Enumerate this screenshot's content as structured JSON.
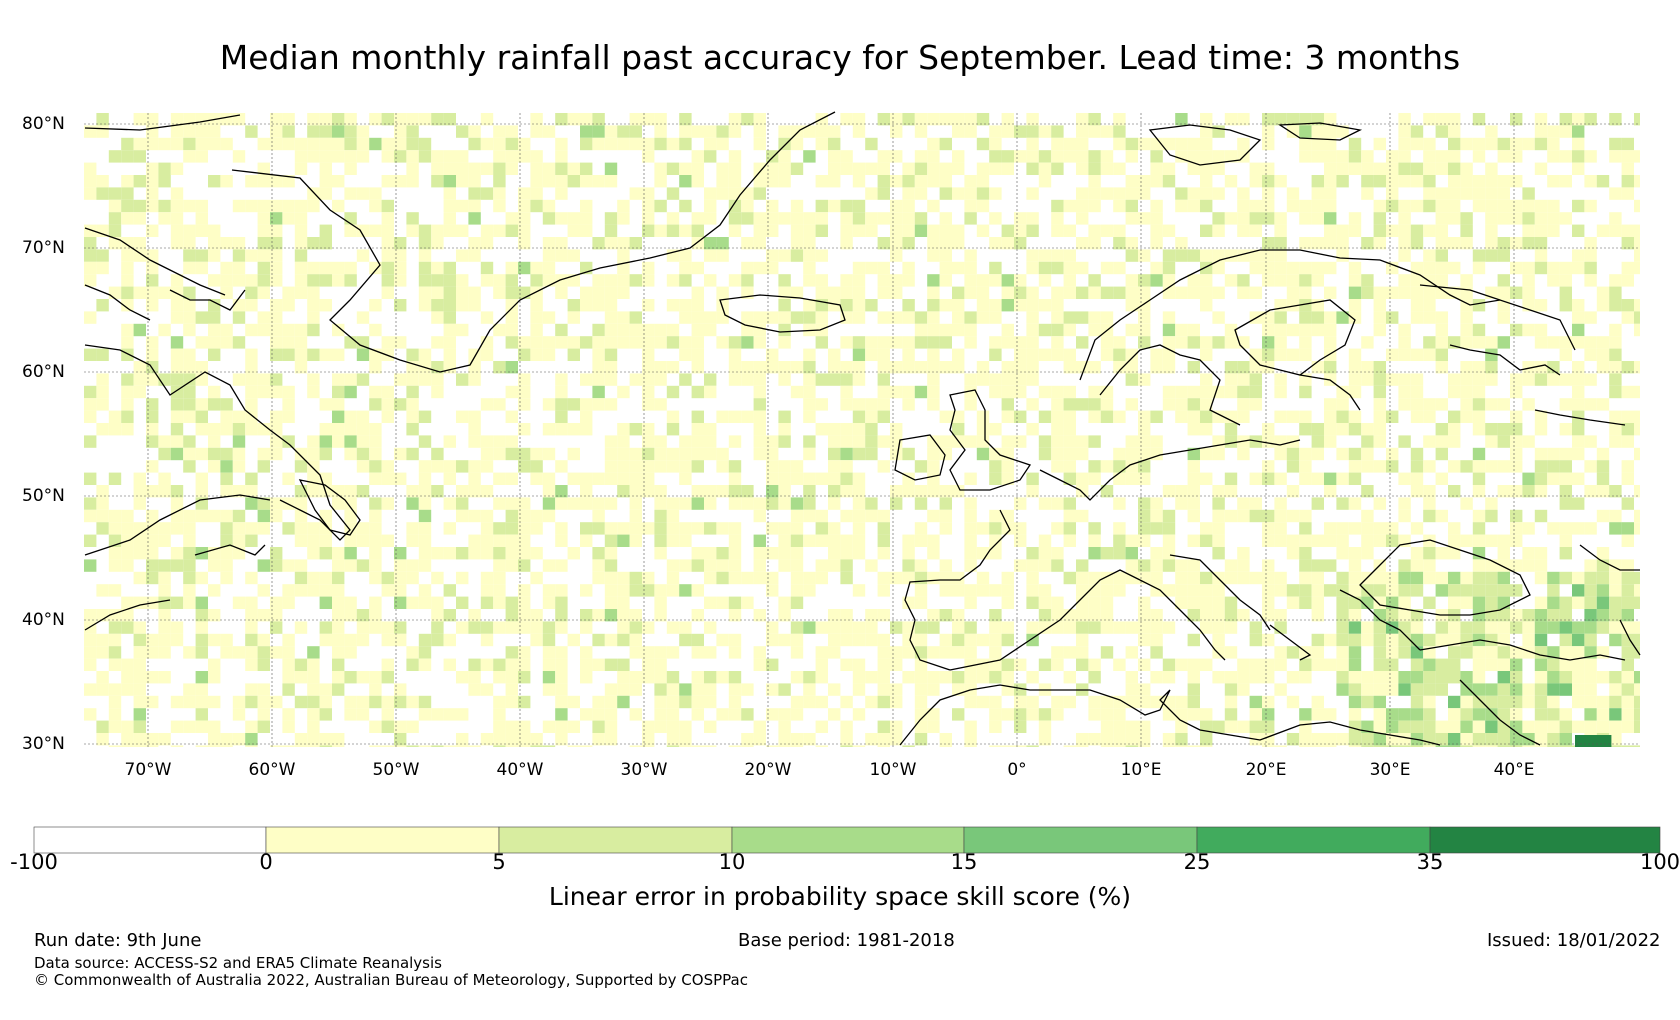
{
  "title": "Median monthly rainfall past accuracy for September. Lead time: 3 months",
  "lat_labels": [
    "80°N",
    "70°N",
    "60°N",
    "50°N",
    "40°N",
    "30°N"
  ],
  "lon_labels": [
    "70°W",
    "60°W",
    "50°W",
    "40°W",
    "30°W",
    "20°W",
    "10°W",
    "0°",
    "10°E",
    "20°E",
    "30°E",
    "40°E"
  ],
  "legend": {
    "ticks": [
      "-100",
      "0",
      "5",
      "10",
      "15",
      "25",
      "35",
      "100"
    ],
    "colors": [
      "#ffffff",
      "#fefec6",
      "#d8eda0",
      "#a8dc8a",
      "#79c77a",
      "#41ab5d",
      "#238443"
    ],
    "label": "Linear error in probability space skill score (%)"
  },
  "footer": {
    "run_date": "Run date: 9th June",
    "base_period": "Base period: 1981-2018",
    "issued": "Issued: 18/01/2022",
    "data_source": "Data source: ACCESS-S2 and ERA5 Climate Reanalysis",
    "copyright": "© Commonwealth of Australia 2022, Australian Bureau of Meteorology, Supported by COSPPac"
  }
}
